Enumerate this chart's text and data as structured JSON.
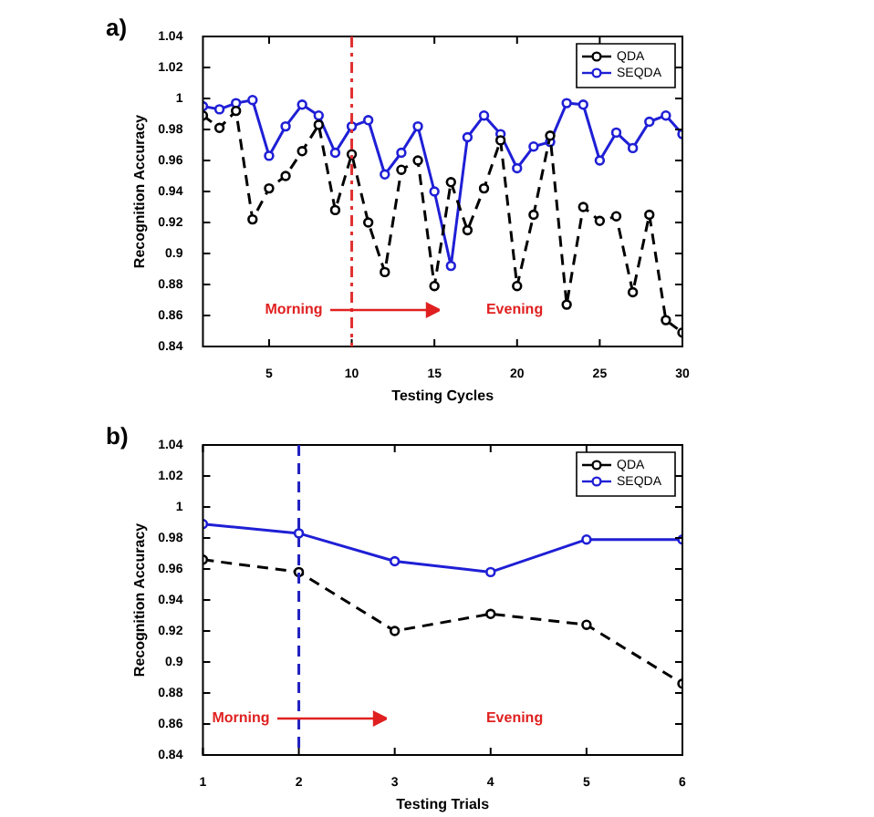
{
  "chart_data": [
    {
      "type": "line",
      "title": "a)",
      "xlabel": "Testing Cycles",
      "ylabel": "Recognition Accuracy",
      "x": [
        1,
        2,
        3,
        4,
        5,
        6,
        7,
        8,
        9,
        10,
        11,
        12,
        13,
        14,
        15,
        16,
        17,
        18,
        19,
        20,
        21,
        22,
        23,
        24,
        25,
        26,
        27,
        28,
        29,
        30
      ],
      "series": [
        {
          "name": "QDA",
          "color": "#000000",
          "line_style": "dashed",
          "values": [
            0.989,
            0.981,
            0.992,
            0.922,
            0.942,
            0.95,
            0.966,
            0.983,
            0.928,
            0.964,
            0.92,
            0.888,
            0.954,
            0.96,
            0.879,
            0.946,
            0.915,
            0.942,
            0.973,
            0.879,
            0.925,
            0.976,
            0.867,
            0.93,
            0.921,
            0.924,
            0.875,
            0.925,
            0.857,
            0.849
          ]
        },
        {
          "name": "SEQDA",
          "color": "#1f1fd6",
          "line_style": "solid",
          "values": [
            0.995,
            0.993,
            0.997,
            0.999,
            0.963,
            0.982,
            0.996,
            0.989,
            0.965,
            0.982,
            0.986,
            0.951,
            0.965,
            0.982,
            0.94,
            0.892,
            0.975,
            0.989,
            0.977,
            0.955,
            0.969,
            0.972,
            0.997,
            0.996,
            0.96,
            0.978,
            0.968,
            0.985,
            0.989,
            0.977
          ]
        }
      ],
      "xlim": [
        1,
        30
      ],
      "xticks": [
        5,
        10,
        15,
        20,
        25,
        30
      ],
      "ylim": [
        0.84,
        1.04
      ],
      "yticks": [
        0.84,
        0.86,
        0.88,
        0.9,
        0.92,
        0.94,
        0.96,
        0.98,
        1,
        1.02,
        1.04
      ],
      "ref_lines": [
        {
          "axis": "x",
          "value": 10,
          "color": "#e03030",
          "line_style": "dashdot"
        }
      ],
      "annotations": [
        "Morning",
        "Evening"
      ],
      "marker": "circle",
      "grid": false,
      "legend": "top right"
    },
    {
      "type": "line",
      "title": "b)",
      "xlabel": "Testing Trials",
      "ylabel": "Recognition Accuracy",
      "x": [
        1,
        2,
        3,
        4,
        5,
        6
      ],
      "series": [
        {
          "name": "QDA",
          "color": "#000000",
          "line_style": "dashed",
          "values": [
            0.966,
            0.958,
            0.92,
            0.931,
            0.924,
            0.886
          ]
        },
        {
          "name": "SEQDA",
          "color": "#1f1fd6",
          "line_style": "solid",
          "values": [
            0.989,
            0.983,
            0.965,
            0.958,
            0.979,
            0.979
          ]
        }
      ],
      "xlim": [
        1,
        6
      ],
      "xticks": [
        1,
        2,
        3,
        4,
        5,
        6
      ],
      "ylim": [
        0.84,
        1.04
      ],
      "yticks": [
        0.84,
        0.86,
        0.88,
        0.9,
        0.92,
        0.94,
        0.96,
        0.98,
        1,
        1.02,
        1.04
      ],
      "ref_lines": [
        {
          "axis": "x",
          "value": 2,
          "color": "#2020c0",
          "line_style": "dashed"
        }
      ],
      "annotations": [
        "Morning",
        "Evening"
      ],
      "marker": "circle",
      "grid": false,
      "legend": "top right"
    }
  ]
}
